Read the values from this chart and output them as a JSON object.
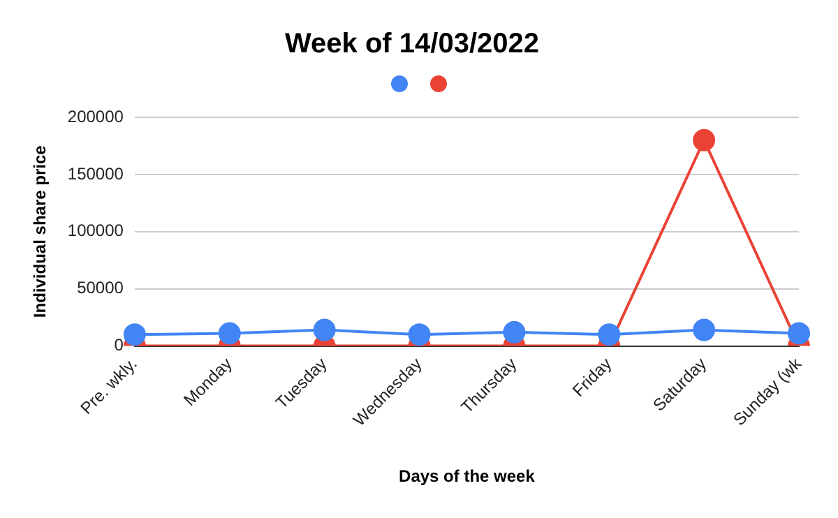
{
  "chart_data": {
    "type": "line",
    "title": "Week of 14/03/2022",
    "xlabel": "Days of the week",
    "ylabel": "Individual share price",
    "categories": [
      "Pre. wkly.",
      "Monday",
      "Tuesday",
      "Wednesday",
      "Thursday",
      "Friday",
      "Saturday",
      "Sunday (wk"
    ],
    "series": [
      {
        "color": "#4285f4",
        "values": [
          10000,
          11000,
          14000,
          10000,
          12000,
          10000,
          14000,
          11000
        ]
      },
      {
        "color": "#ea4335",
        "values": [
          0,
          0,
          0,
          0,
          0,
          0,
          180000,
          0
        ]
      }
    ],
    "ylim": [
      0,
      200000
    ],
    "yticks": [
      0,
      50000,
      100000,
      150000,
      200000
    ],
    "grid": "y",
    "marker": "circle",
    "line_style": "solid"
  }
}
